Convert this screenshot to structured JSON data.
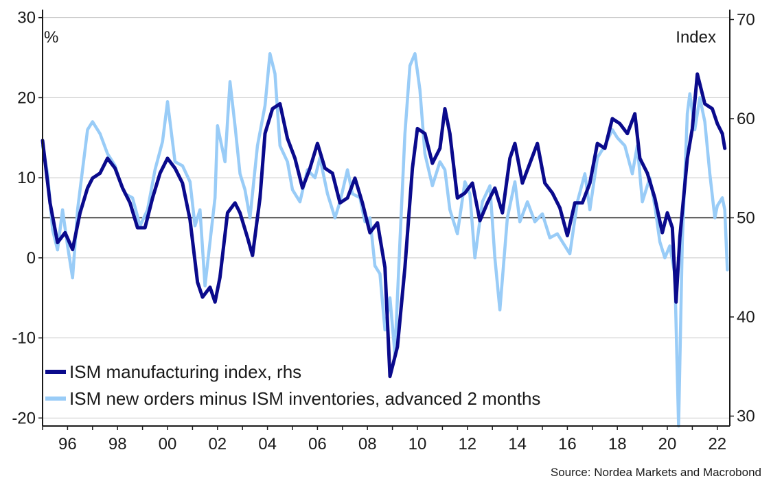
{
  "chart_data": {
    "type": "line",
    "left_axis_unit": "%",
    "right_axis_unit": "Index",
    "ylim_left": [
      -21,
      31
    ],
    "ylim_right": [
      29,
      71
    ],
    "y_ticks_left": [
      30,
      20,
      10,
      0,
      -10,
      -20
    ],
    "y_ticks_right": [
      70,
      60,
      50,
      40,
      30
    ],
    "x_range": [
      1995.0,
      2022.5
    ],
    "x_ticks": [
      {
        "value": 1996,
        "label": "96"
      },
      {
        "value": 1998,
        "label": "98"
      },
      {
        "value": 2000,
        "label": "00"
      },
      {
        "value": 2002,
        "label": "02"
      },
      {
        "value": 2004,
        "label": "04"
      },
      {
        "value": 2006,
        "label": "06"
      },
      {
        "value": 2008,
        "label": "08"
      },
      {
        "value": 2010,
        "label": "10"
      },
      {
        "value": 2012,
        "label": "12"
      },
      {
        "value": 2014,
        "label": "14"
      },
      {
        "value": 2016,
        "label": "16"
      },
      {
        "value": 2018,
        "label": "18"
      },
      {
        "value": 2020,
        "label": "20"
      },
      {
        "value": 2022,
        "label": "22"
      }
    ],
    "reference_line_left": 5,
    "grid": "horizontal",
    "legend_position": "bottom-left",
    "series": [
      {
        "name": "ISM manufacturing index, rhs",
        "axis": "right",
        "color": "#0a0a8c",
        "points": [
          [
            1995.0,
            57.8
          ],
          [
            1995.3,
            51.5
          ],
          [
            1995.6,
            47.5
          ],
          [
            1995.9,
            48.5
          ],
          [
            1996.2,
            46.8
          ],
          [
            1996.5,
            50.5
          ],
          [
            1996.8,
            53.0
          ],
          [
            1997.0,
            54.0
          ],
          [
            1997.3,
            54.5
          ],
          [
            1997.6,
            56.0
          ],
          [
            1997.9,
            55.0
          ],
          [
            1998.2,
            53.0
          ],
          [
            1998.5,
            51.5
          ],
          [
            1998.8,
            49.0
          ],
          [
            1999.1,
            49.0
          ],
          [
            1999.4,
            52.0
          ],
          [
            1999.7,
            54.5
          ],
          [
            2000.0,
            56.0
          ],
          [
            2000.3,
            55.0
          ],
          [
            2000.6,
            53.5
          ],
          [
            2000.9,
            49.8
          ],
          [
            2001.2,
            43.5
          ],
          [
            2001.4,
            42.0
          ],
          [
            2001.7,
            43.0
          ],
          [
            2001.9,
            41.5
          ],
          [
            2002.1,
            44.0
          ],
          [
            2002.4,
            50.5
          ],
          [
            2002.7,
            51.5
          ],
          [
            2002.9,
            50.5
          ],
          [
            2003.2,
            48.0
          ],
          [
            2003.4,
            46.2
          ],
          [
            2003.7,
            52.0
          ],
          [
            2003.9,
            58.5
          ],
          [
            2004.2,
            61.0
          ],
          [
            2004.5,
            61.5
          ],
          [
            2004.8,
            58.0
          ],
          [
            2005.1,
            56.0
          ],
          [
            2005.4,
            53.0
          ],
          [
            2005.7,
            55.0
          ],
          [
            2006.0,
            57.5
          ],
          [
            2006.3,
            55.0
          ],
          [
            2006.6,
            54.5
          ],
          [
            2006.9,
            51.5
          ],
          [
            2007.2,
            52.0
          ],
          [
            2007.5,
            54.0
          ],
          [
            2007.8,
            51.5
          ],
          [
            2008.1,
            48.5
          ],
          [
            2008.4,
            49.5
          ],
          [
            2008.7,
            45.0
          ],
          [
            2008.9,
            34.0
          ],
          [
            2009.2,
            37.0
          ],
          [
            2009.5,
            45.0
          ],
          [
            2009.8,
            55.0
          ],
          [
            2010.0,
            59.0
          ],
          [
            2010.3,
            58.5
          ],
          [
            2010.6,
            55.5
          ],
          [
            2010.9,
            57.0
          ],
          [
            2011.1,
            61.0
          ],
          [
            2011.3,
            58.5
          ],
          [
            2011.6,
            52.0
          ],
          [
            2011.9,
            52.5
          ],
          [
            2012.2,
            53.5
          ],
          [
            2012.5,
            49.7
          ],
          [
            2012.8,
            51.5
          ],
          [
            2013.1,
            53.0
          ],
          [
            2013.4,
            50.5
          ],
          [
            2013.7,
            56.0
          ],
          [
            2013.9,
            57.5
          ],
          [
            2014.2,
            53.5
          ],
          [
            2014.5,
            55.5
          ],
          [
            2014.8,
            57.5
          ],
          [
            2015.1,
            53.5
          ],
          [
            2015.4,
            52.5
          ],
          [
            2015.7,
            51.0
          ],
          [
            2016.0,
            48.2
          ],
          [
            2016.3,
            51.5
          ],
          [
            2016.6,
            51.5
          ],
          [
            2016.9,
            53.5
          ],
          [
            2017.2,
            57.5
          ],
          [
            2017.5,
            57.0
          ],
          [
            2017.8,
            60.0
          ],
          [
            2018.1,
            59.5
          ],
          [
            2018.4,
            58.5
          ],
          [
            2018.7,
            60.5
          ],
          [
            2018.9,
            56.0
          ],
          [
            2019.2,
            54.5
          ],
          [
            2019.5,
            52.0
          ],
          [
            2019.8,
            48.5
          ],
          [
            2020.0,
            50.5
          ],
          [
            2020.2,
            49.0
          ],
          [
            2020.35,
            41.5
          ],
          [
            2020.5,
            48.0
          ],
          [
            2020.8,
            56.0
          ],
          [
            2021.0,
            59.0
          ],
          [
            2021.2,
            64.5
          ],
          [
            2021.5,
            61.5
          ],
          [
            2021.8,
            61.0
          ],
          [
            2022.0,
            59.5
          ],
          [
            2022.2,
            58.5
          ],
          [
            2022.3,
            57.0
          ]
        ]
      },
      {
        "name": "ISM new orders minus ISM inventories, advanced 2 months",
        "axis": "left",
        "color": "#99ccf7",
        "points": [
          [
            1995.0,
            14.0
          ],
          [
            1995.2,
            10.5
          ],
          [
            1995.4,
            3.5
          ],
          [
            1995.6,
            1.0
          ],
          [
            1995.8,
            6.0
          ],
          [
            1996.0,
            1.5
          ],
          [
            1996.2,
            -2.5
          ],
          [
            1996.4,
            6.0
          ],
          [
            1996.6,
            11.0
          ],
          [
            1996.8,
            16.0
          ],
          [
            1997.0,
            17.0
          ],
          [
            1997.3,
            15.5
          ],
          [
            1997.6,
            13.0
          ],
          [
            1997.9,
            11.5
          ],
          [
            1998.1,
            9.5
          ],
          [
            1998.3,
            8.0
          ],
          [
            1998.6,
            7.5
          ],
          [
            1998.9,
            4.0
          ],
          [
            1999.2,
            6.0
          ],
          [
            1999.5,
            11.0
          ],
          [
            1999.8,
            14.5
          ],
          [
            2000.0,
            19.5
          ],
          [
            2000.3,
            12.0
          ],
          [
            2000.6,
            11.5
          ],
          [
            2000.9,
            9.5
          ],
          [
            2001.1,
            4.0
          ],
          [
            2001.3,
            6.0
          ],
          [
            2001.5,
            -3.5
          ],
          [
            2001.7,
            2.0
          ],
          [
            2001.9,
            7.5
          ],
          [
            2002.0,
            16.5
          ],
          [
            2002.3,
            12.0
          ],
          [
            2002.5,
            22.0
          ],
          [
            2002.7,
            16.5
          ],
          [
            2002.9,
            10.5
          ],
          [
            2003.1,
            8.5
          ],
          [
            2003.3,
            5.0
          ],
          [
            2003.6,
            14.0
          ],
          [
            2003.9,
            19.0
          ],
          [
            2004.1,
            25.5
          ],
          [
            2004.3,
            23.0
          ],
          [
            2004.5,
            14.0
          ],
          [
            2004.8,
            12.0
          ],
          [
            2005.0,
            8.5
          ],
          [
            2005.3,
            7.0
          ],
          [
            2005.6,
            11.0
          ],
          [
            2005.9,
            10.0
          ],
          [
            2006.1,
            12.5
          ],
          [
            2006.4,
            8.0
          ],
          [
            2006.7,
            5.0
          ],
          [
            2006.9,
            7.0
          ],
          [
            2007.2,
            11.0
          ],
          [
            2007.4,
            8.0
          ],
          [
            2007.7,
            7.5
          ],
          [
            2007.9,
            4.5
          ],
          [
            2008.1,
            5.0
          ],
          [
            2008.3,
            -1.0
          ],
          [
            2008.5,
            -2.0
          ],
          [
            2008.7,
            -9.0
          ],
          [
            2008.9,
            -5.0
          ],
          [
            2009.1,
            -12.0
          ],
          [
            2009.3,
            2.0
          ],
          [
            2009.5,
            15.5
          ],
          [
            2009.7,
            24.0
          ],
          [
            2009.9,
            25.5
          ],
          [
            2010.1,
            21.0
          ],
          [
            2010.3,
            13.0
          ],
          [
            2010.6,
            9.0
          ],
          [
            2010.9,
            12.0
          ],
          [
            2011.1,
            11.0
          ],
          [
            2011.3,
            6.0
          ],
          [
            2011.6,
            3.0
          ],
          [
            2011.9,
            9.5
          ],
          [
            2012.1,
            8.0
          ],
          [
            2012.3,
            0.0
          ],
          [
            2012.6,
            7.0
          ],
          [
            2012.9,
            9.0
          ],
          [
            2013.1,
            0.0
          ],
          [
            2013.3,
            -6.5
          ],
          [
            2013.6,
            5.0
          ],
          [
            2013.9,
            9.5
          ],
          [
            2014.1,
            4.5
          ],
          [
            2014.4,
            7.0
          ],
          [
            2014.7,
            4.5
          ],
          [
            2015.0,
            5.5
          ],
          [
            2015.3,
            2.5
          ],
          [
            2015.6,
            3.0
          ],
          [
            2015.9,
            1.5
          ],
          [
            2016.1,
            0.5
          ],
          [
            2016.4,
            7.0
          ],
          [
            2016.7,
            10.5
          ],
          [
            2016.9,
            6.0
          ],
          [
            2017.2,
            12.5
          ],
          [
            2017.5,
            14.0
          ],
          [
            2017.8,
            16.0
          ],
          [
            2018.0,
            15.0
          ],
          [
            2018.3,
            14.0
          ],
          [
            2018.6,
            10.5
          ],
          [
            2018.8,
            14.0
          ],
          [
            2019.0,
            7.0
          ],
          [
            2019.3,
            10.0
          ],
          [
            2019.5,
            6.5
          ],
          [
            2019.7,
            2.0
          ],
          [
            2019.9,
            0.0
          ],
          [
            2020.1,
            1.5
          ],
          [
            2020.3,
            -2.0
          ],
          [
            2020.45,
            -21.0
          ],
          [
            2020.6,
            2.0
          ],
          [
            2020.8,
            18.0
          ],
          [
            2020.9,
            20.5
          ],
          [
            2021.1,
            16.0
          ],
          [
            2021.3,
            20.0
          ],
          [
            2021.5,
            17.0
          ],
          [
            2021.7,
            10.5
          ],
          [
            2021.9,
            5.0
          ],
          [
            2022.0,
            6.5
          ],
          [
            2022.2,
            7.5
          ],
          [
            2022.3,
            6.0
          ],
          [
            2022.4,
            -1.5
          ]
        ]
      }
    ]
  },
  "source": "Source: Nordea Markets and Macrobond"
}
